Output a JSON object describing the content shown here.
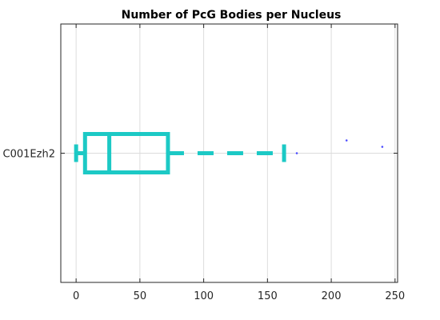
{
  "chart_data": {
    "type": "box",
    "orientation": "horizontal",
    "title": "Number of PcG Bodies per Nucleus",
    "xlabel": "",
    "ylabel": "",
    "xlim": [
      -12,
      252
    ],
    "xticks": [
      0,
      50,
      100,
      150,
      200,
      250
    ],
    "categories": [
      "C001Ezh2"
    ],
    "grid": true,
    "color": "#1cc9c5",
    "outlier_color": "#4b4bff",
    "boxes": [
      {
        "category": "C001Ezh2",
        "whisker_low": 0,
        "q1": 7,
        "median": 26,
        "q3": 72,
        "whisker_high": 163,
        "outliers": [
          {
            "x": 173,
            "jitter": 0.0
          },
          {
            "x": 212,
            "jitter": 0.1
          },
          {
            "x": 240,
            "jitter": 0.05
          }
        ]
      }
    ]
  }
}
